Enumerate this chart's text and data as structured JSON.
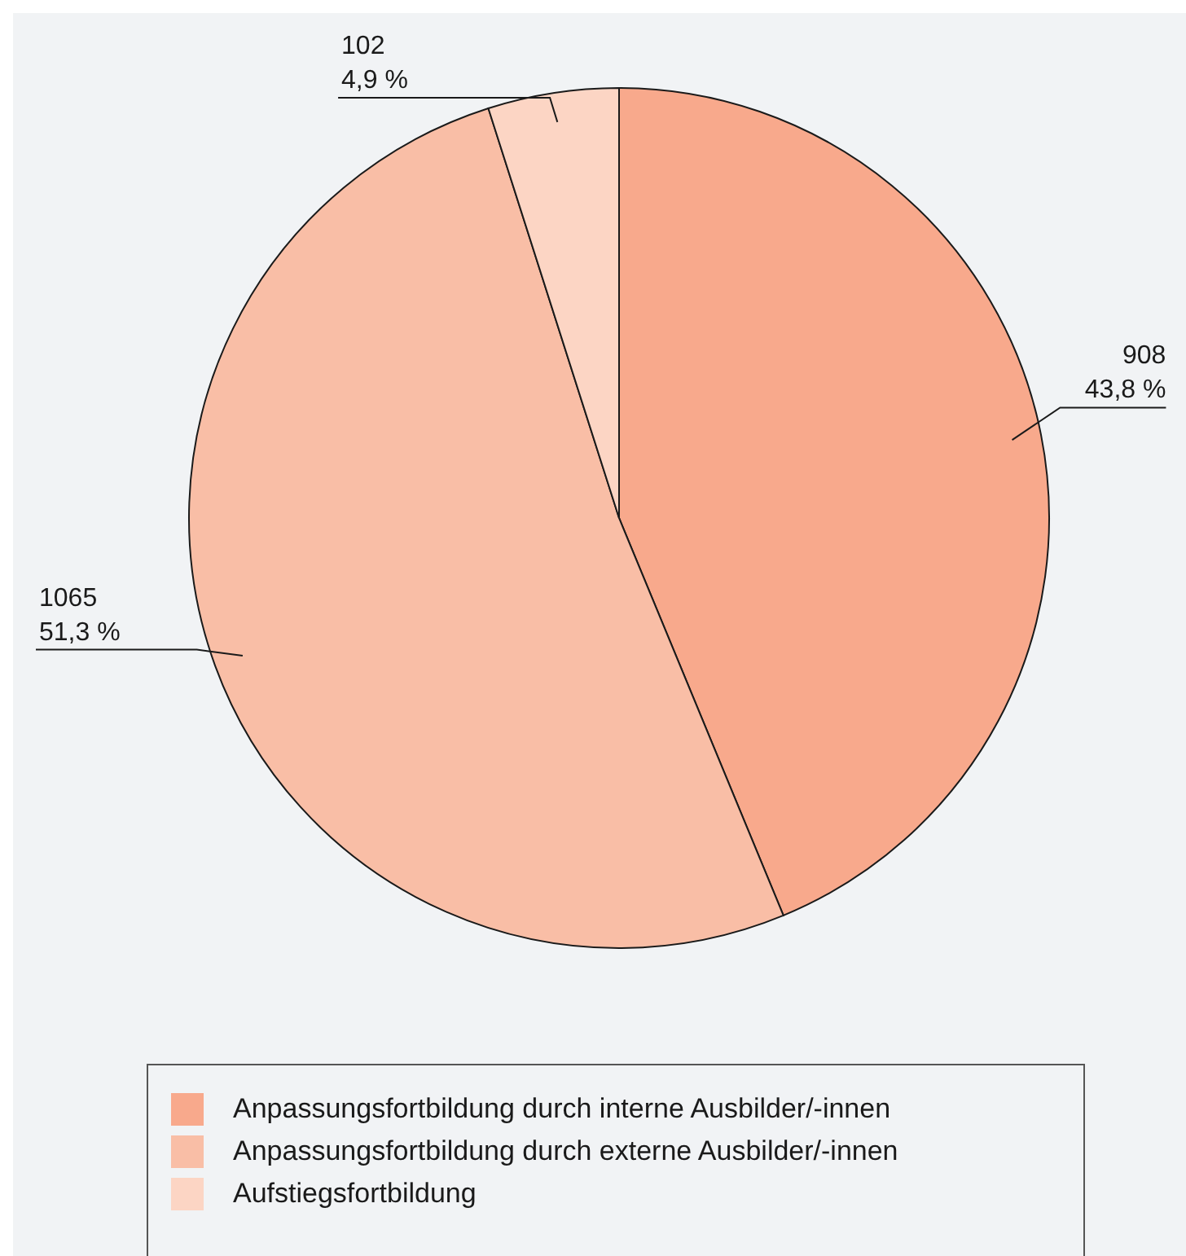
{
  "chart_data": {
    "type": "pie",
    "categories": [
      "Anpassungsfortbildung durch interne Ausbilder/-innen",
      "Anpassungsfortbildung durch externe Ausbilder/-innen",
      "Aufstiegsfortbildung"
    ],
    "values": [
      908,
      1065,
      102
    ],
    "colors": [
      "#f8a98c",
      "#f9bea6",
      "#fcd5c4"
    ],
    "value_labels": [
      "908\n43,8 %",
      "1065\n51,3 %",
      "102\n4,9 %"
    ],
    "legend": "bottom"
  }
}
